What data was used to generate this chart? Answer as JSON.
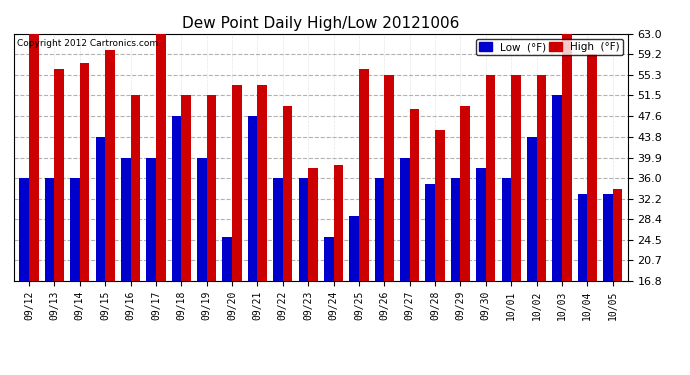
{
  "title": "Dew Point Daily High/Low 20121006",
  "copyright": "Copyright 2012 Cartronics.com",
  "background_color": "#ffffff",
  "plot_bg_color": "#ffffff",
  "bar_width": 0.38,
  "low_color": "#0000cc",
  "high_color": "#cc0000",
  "legend_low_label": "Low  (°F)",
  "legend_high_label": "High  (°F)",
  "ylim": [
    16.8,
    63.0
  ],
  "yticks": [
    16.8,
    20.7,
    24.5,
    28.4,
    32.2,
    36.0,
    39.9,
    43.8,
    47.6,
    51.5,
    55.3,
    59.2,
    63.0
  ],
  "categories": [
    "09/12",
    "09/13",
    "09/14",
    "09/15",
    "09/16",
    "09/17",
    "09/18",
    "09/19",
    "09/20",
    "09/21",
    "09/22",
    "09/23",
    "09/24",
    "09/25",
    "09/26",
    "09/27",
    "09/28",
    "09/29",
    "09/30",
    "10/01",
    "10/02",
    "10/03",
    "10/04",
    "10/05"
  ],
  "lows": [
    36.0,
    36.0,
    36.0,
    43.8,
    39.9,
    39.9,
    47.6,
    39.9,
    25.0,
    47.6,
    36.0,
    36.0,
    25.0,
    29.0,
    36.0,
    39.9,
    35.0,
    36.0,
    38.0,
    36.0,
    43.8,
    51.5,
    33.0,
    33.0
  ],
  "highs": [
    63.0,
    56.5,
    57.5,
    60.0,
    51.5,
    64.5,
    51.5,
    51.5,
    53.5,
    53.5,
    49.5,
    38.0,
    38.5,
    56.5,
    55.3,
    49.0,
    45.0,
    49.5,
    55.3,
    55.3,
    55.3,
    64.0,
    59.2,
    34.0
  ]
}
